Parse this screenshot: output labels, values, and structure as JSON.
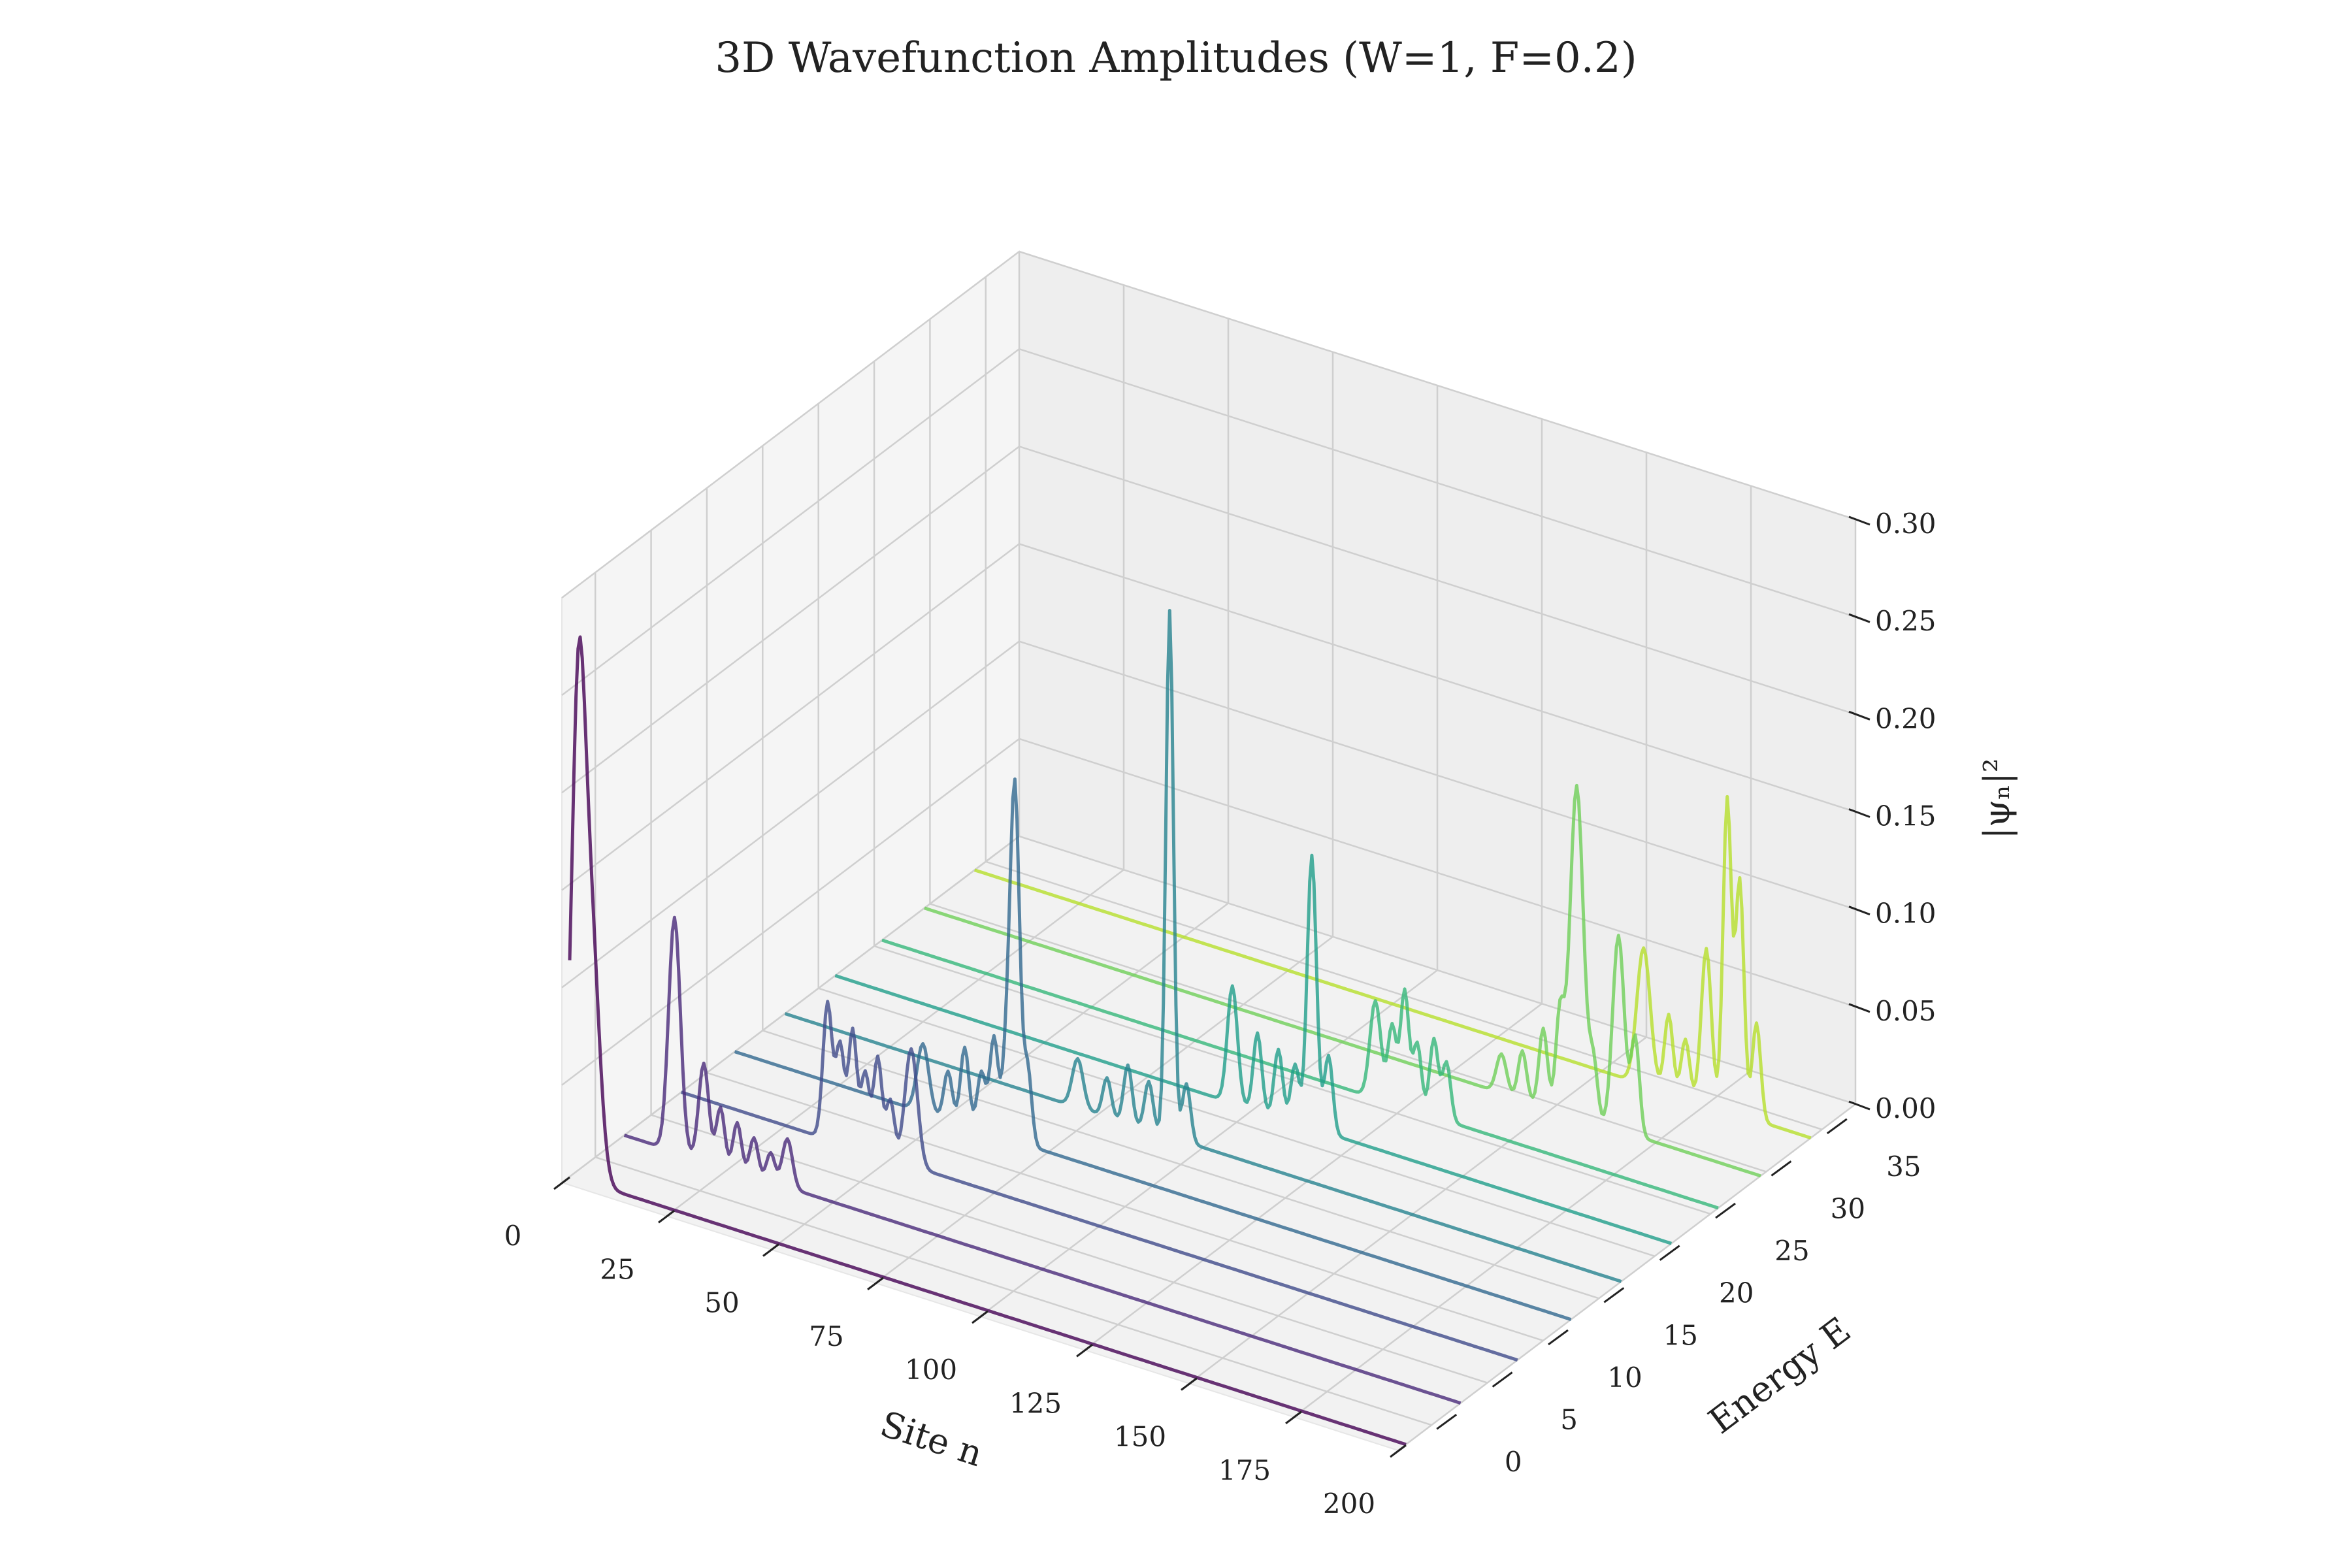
{
  "chart_data": {
    "type": "line",
    "projection": "3d",
    "title": "3D Wavefunction Amplitudes (W=1, F=0.2)",
    "xlabel": "Site n",
    "ylabel": "Energy E",
    "zlabel": "|ψₙ|²",
    "xlim": [
      0,
      200
    ],
    "ylim": [
      -3,
      38
    ],
    "zlim": [
      0,
      0.3
    ],
    "xticks": [
      "0",
      "25",
      "50",
      "75",
      "100",
      "125",
      "150",
      "175",
      "200"
    ],
    "yticks": [
      "0",
      "5",
      "10",
      "15",
      "20",
      "25",
      "30",
      "35"
    ],
    "zticks": [
      "0.00",
      "0.05",
      "0.10",
      "0.15",
      "0.20",
      "0.25",
      "0.30"
    ],
    "grid": true,
    "colormap": "viridis",
    "series": [
      {
        "energy": -2.3,
        "color": "#440154",
        "peaks": [
          {
            "x": 2,
            "y": 0.23,
            "w": 1.6
          },
          {
            "x": 5,
            "y": 0.13,
            "w": 2.0
          }
        ]
      },
      {
        "energy": 2.6,
        "color": "#482979",
        "peaks": [
          {
            "x": 12,
            "y": 0.12,
            "w": 1.4
          },
          {
            "x": 19,
            "y": 0.05,
            "w": 1.2
          },
          {
            "x": 23,
            "y": 0.03,
            "w": 1.0
          },
          {
            "x": 27,
            "y": 0.025,
            "w": 1.0
          },
          {
            "x": 31,
            "y": 0.02,
            "w": 1.0
          },
          {
            "x": 35,
            "y": 0.015,
            "w": 1.0
          },
          {
            "x": 39,
            "y": 0.025,
            "w": 1.2
          }
        ]
      },
      {
        "energy": 7.7,
        "color": "#3e4a89",
        "peaks": [
          {
            "x": 35,
            "y": 0.07,
            "w": 1.1
          },
          {
            "x": 38,
            "y": 0.05,
            "w": 1.0
          },
          {
            "x": 41,
            "y": 0.06,
            "w": 1.0
          },
          {
            "x": 44,
            "y": 0.04,
            "w": 1.0
          },
          {
            "x": 47,
            "y": 0.05,
            "w": 1.0
          },
          {
            "x": 50,
            "y": 0.03,
            "w": 1.0
          },
          {
            "x": 55,
            "y": 0.06,
            "w": 1.5
          }
        ]
      },
      {
        "energy": 12.5,
        "color": "#31688e",
        "peaks": [
          {
            "x": 45,
            "y": 0.035,
            "w": 1.4
          },
          {
            "x": 51,
            "y": 0.025,
            "w": 1.0
          },
          {
            "x": 55,
            "y": 0.04,
            "w": 1.0
          },
          {
            "x": 59,
            "y": 0.03,
            "w": 1.0
          },
          {
            "x": 62,
            "y": 0.05,
            "w": 1.0
          },
          {
            "x": 65,
            "y": 0.04,
            "w": 1.0
          },
          {
            "x": 67,
            "y": 0.18,
            "w": 1.1
          },
          {
            "x": 70,
            "y": 0.04,
            "w": 1.0
          }
        ]
      },
      {
        "energy": 17.0,
        "color": "#26828e",
        "peaks": [
          {
            "x": 70,
            "y": 0.025,
            "w": 1.3
          },
          {
            "x": 77,
            "y": 0.02,
            "w": 1.0
          },
          {
            "x": 82,
            "y": 0.03,
            "w": 1.0
          },
          {
            "x": 87,
            "y": 0.025,
            "w": 1.0
          },
          {
            "x": 92,
            "y": 0.27,
            "w": 0.9
          },
          {
            "x": 96,
            "y": 0.03,
            "w": 1.0
          }
        ]
      },
      {
        "energy": 21.5,
        "color": "#1f9e89",
        "peaks": [
          {
            "x": 95,
            "y": 0.06,
            "w": 1.2
          },
          {
            "x": 101,
            "y": 0.04,
            "w": 1.0
          },
          {
            "x": 106,
            "y": 0.035,
            "w": 1.0
          },
          {
            "x": 110,
            "y": 0.03,
            "w": 1.0
          },
          {
            "x": 114,
            "y": 0.14,
            "w": 1.1
          },
          {
            "x": 118,
            "y": 0.04,
            "w": 1.0
          }
        ]
      },
      {
        "energy": 25.7,
        "color": "#35b779",
        "peaks": [
          {
            "x": 118,
            "y": 0.05,
            "w": 1.3
          },
          {
            "x": 122,
            "y": 0.04,
            "w": 1.0
          },
          {
            "x": 125,
            "y": 0.06,
            "w": 1.0
          },
          {
            "x": 128,
            "y": 0.035,
            "w": 1.0
          },
          {
            "x": 132,
            "y": 0.04,
            "w": 1.0
          },
          {
            "x": 135,
            "y": 0.03,
            "w": 1.0
          }
        ]
      },
      {
        "energy": 29.5,
        "color": "#6ece58",
        "peaks": [
          {
            "x": 138,
            "y": 0.02,
            "w": 1.2
          },
          {
            "x": 143,
            "y": 0.025,
            "w": 1.0
          },
          {
            "x": 148,
            "y": 0.04,
            "w": 1.0
          },
          {
            "x": 152,
            "y": 0.05,
            "w": 1.0
          },
          {
            "x": 156,
            "y": 0.17,
            "w": 1.6
          },
          {
            "x": 160,
            "y": 0.03,
            "w": 1.0
          },
          {
            "x": 166,
            "y": 0.1,
            "w": 1.4
          },
          {
            "x": 170,
            "y": 0.05,
            "w": 1.0
          }
        ]
      },
      {
        "energy": 34.0,
        "color": "#b5de2b",
        "peaks": [
          {
            "x": 160,
            "y": 0.07,
            "w": 1.6
          },
          {
            "x": 166,
            "y": 0.04,
            "w": 1.0
          },
          {
            "x": 170,
            "y": 0.03,
            "w": 1.0
          },
          {
            "x": 175,
            "y": 0.08,
            "w": 1.2
          },
          {
            "x": 180,
            "y": 0.16,
            "w": 1.0
          },
          {
            "x": 183,
            "y": 0.12,
            "w": 1.0
          },
          {
            "x": 187,
            "y": 0.05,
            "w": 1.0
          }
        ]
      }
    ]
  }
}
